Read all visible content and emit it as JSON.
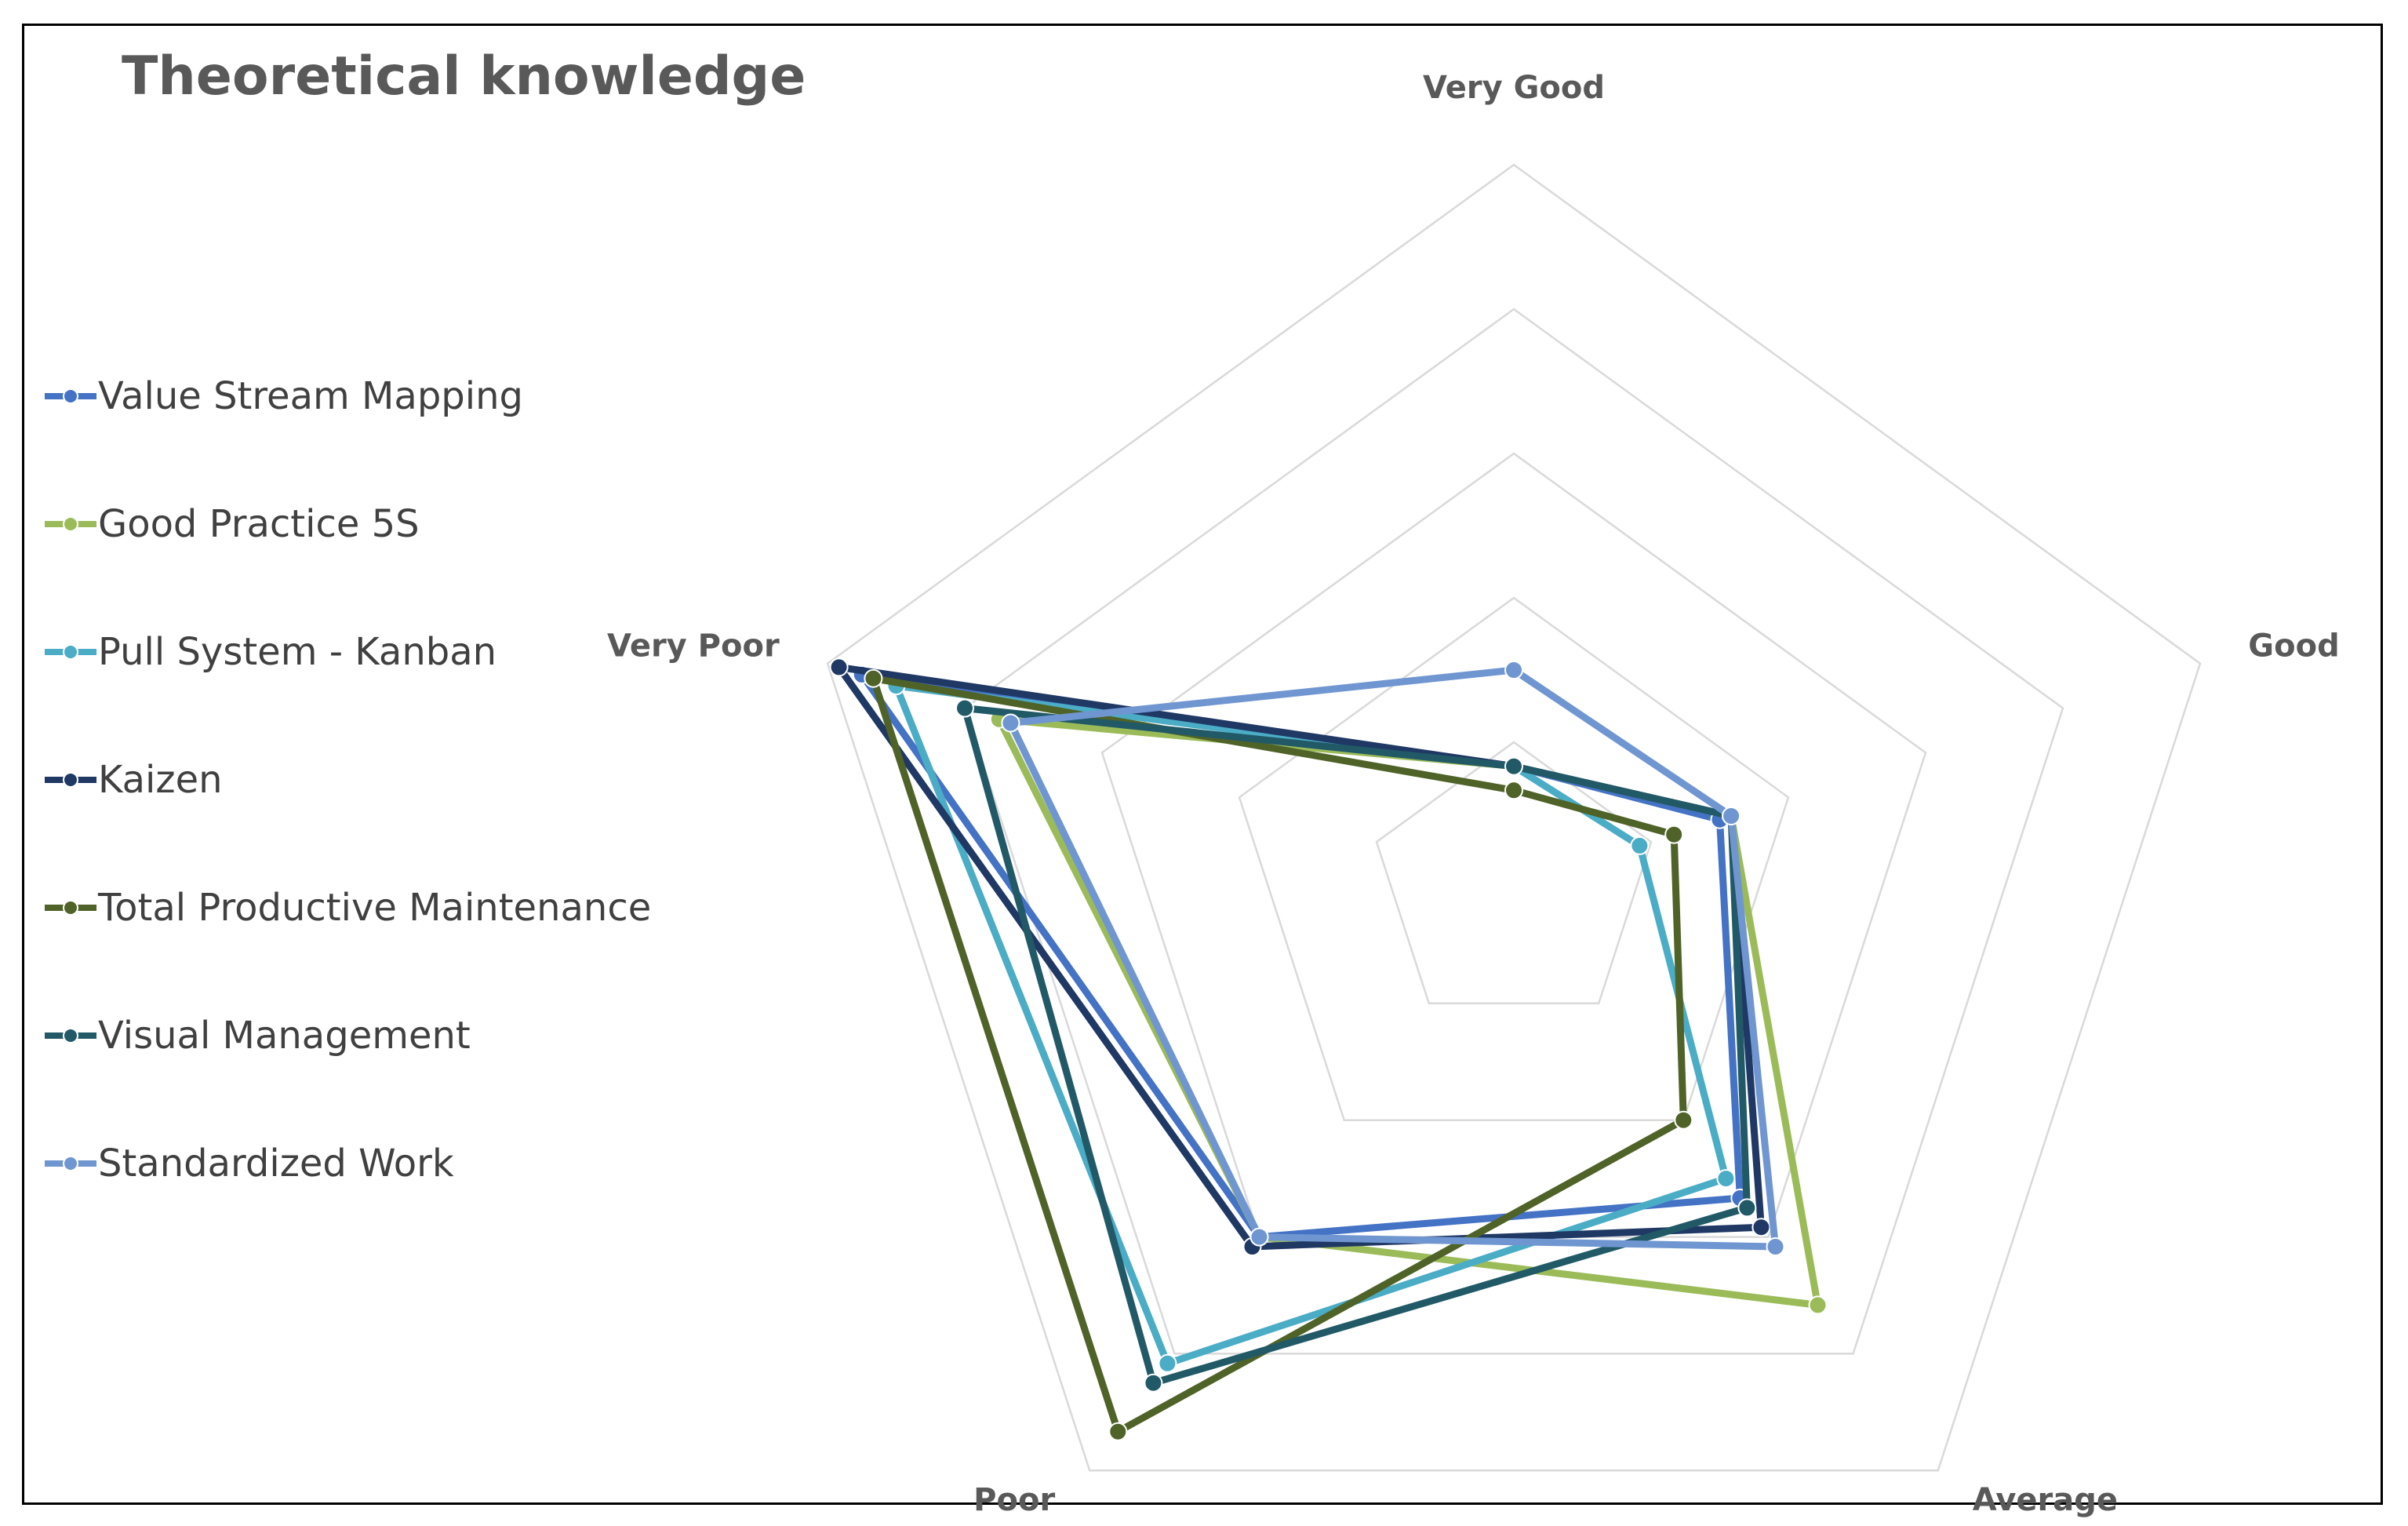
{
  "chart_data": {
    "type": "radar",
    "title": "Theoretical knowledge",
    "categories": [
      "Very Good",
      "Good",
      "Average",
      "Poor",
      "Very Poor"
    ],
    "rmax": 6,
    "rings": 5,
    "legend_position": "left",
    "series": [
      {
        "name": "Value Stream Mapping",
        "color": "#4472C4",
        "values": [
          1.0,
          1.8,
          3.2,
          3.6,
          5.7
        ]
      },
      {
        "name": "Good Practice 5S",
        "color": "#9BBB59",
        "values": [
          1.0,
          1.9,
          4.3,
          3.6,
          4.5
        ]
      },
      {
        "name": "Pull System - Kanban",
        "color": "#4BACC6",
        "values": [
          1.0,
          1.1,
          3.0,
          4.9,
          5.4
        ]
      },
      {
        "name": "Kaizen",
        "color": "#1F3864",
        "values": [
          1.0,
          1.9,
          3.5,
          3.7,
          5.9
        ]
      },
      {
        "name": "Total Productive Maintenance",
        "color": "#4F6228",
        "values": [
          0.8,
          1.4,
          2.4,
          5.6,
          5.6
        ]
      },
      {
        "name": "Visual Management",
        "color": "#215967",
        "values": [
          1.0,
          1.9,
          3.3,
          5.1,
          4.8
        ]
      },
      {
        "name": "Standardized Work",
        "color": "#7096D1",
        "values": [
          1.8,
          1.9,
          3.7,
          3.6,
          4.4
        ]
      }
    ]
  }
}
